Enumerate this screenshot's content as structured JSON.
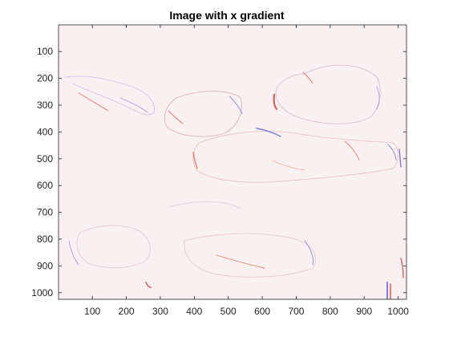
{
  "chart_data": {
    "type": "heatmap",
    "title": "Image with x gradient",
    "xlabel": "",
    "ylabel": "",
    "xlim": [
      0.5,
      1024.5
    ],
    "ylim": [
      0.5,
      1024.5
    ],
    "y_reversed": true,
    "grid": false,
    "x_ticks": [
      100,
      200,
      300,
      400,
      500,
      600,
      700,
      800,
      900,
      1000
    ],
    "y_ticks": [
      100,
      200,
      300,
      400,
      500,
      600,
      700,
      800,
      900,
      1000
    ],
    "x_tick_labels": [
      "100",
      "200",
      "300",
      "400",
      "500",
      "600",
      "700",
      "800",
      "900",
      "1000"
    ],
    "y_tick_labels": [
      "100",
      "200",
      "300",
      "400",
      "500",
      "600",
      "700",
      "800",
      "900",
      "1000"
    ],
    "colormap": {
      "background": "#f9f0f2",
      "positive": "#e8553a",
      "negative": "#5a5ad6"
    }
  }
}
